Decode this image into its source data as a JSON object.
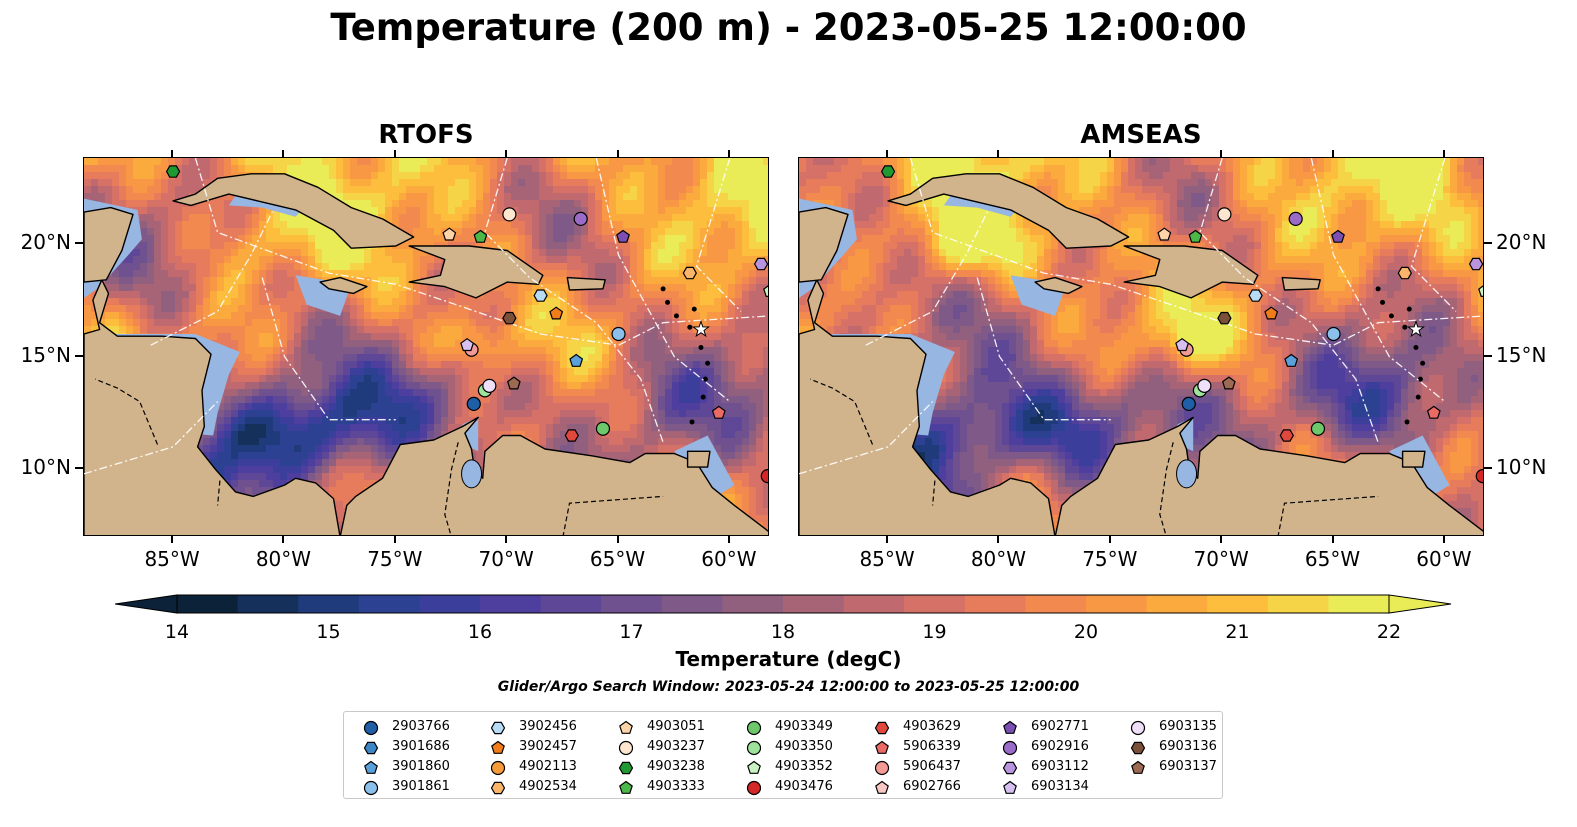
{
  "figure": {
    "title": "Temperature (200 m) - 2023-05-25 12:00:00"
  },
  "panels": [
    {
      "id": "rtofs",
      "title": "RTOFS"
    },
    {
      "id": "amseas",
      "title": "AMSEAS"
    }
  ],
  "axes": {
    "lon_ticks": [
      "85°W",
      "80°W",
      "75°W",
      "70°W",
      "65°W",
      "60°W"
    ],
    "lat_ticks": [
      "20°N",
      "15°N",
      "10°N"
    ]
  },
  "colors": {
    "land": "#d2b48c",
    "shallow_water": "#97b6e1",
    "colormap": [
      "#0c2238",
      "#15305a",
      "#1f3b7c",
      "#2c4192",
      "#3c3e9c",
      "#4e3f9e",
      "#5f4798",
      "#6f518f",
      "#7f5987",
      "#91607f",
      "#a86477",
      "#c06a70",
      "#d67168",
      "#e77c5d",
      "#f2894f",
      "#f89844",
      "#fbaa3d",
      "#fcbe3c",
      "#f6d447",
      "#e9ec57"
    ]
  },
  "colorbar": {
    "label": "Temperature (degC)",
    "min": 14,
    "max": 22,
    "step": 0.4,
    "extend": "both",
    "tick_labels": [
      "14",
      "15",
      "16",
      "17",
      "18",
      "19",
      "20",
      "21",
      "22"
    ]
  },
  "search_window": {
    "text": "Glider/Argo Search Window: 2023-05-24 12:00:00 to 2023-05-25 12:00:00"
  },
  "legend": {
    "columns": 7,
    "entries": [
      {
        "id": "2903766",
        "marker": "circle",
        "color": "#1f5fa8",
        "lon": -71.5,
        "lat": 12.9
      },
      {
        "id": "3901686",
        "marker": "hexagon",
        "color": "#3d86c6",
        "lon": null,
        "lat": null
      },
      {
        "id": "3901860",
        "marker": "pentagon",
        "color": "#5aa0da",
        "lon": -66.9,
        "lat": 14.8
      },
      {
        "id": "3901861",
        "marker": "circle",
        "color": "#8cc0ec",
        "lon": -65.0,
        "lat": 16.0
      },
      {
        "id": "3902456",
        "marker": "hexagon",
        "color": "#b7daf5",
        "lon": -68.5,
        "lat": 17.7
      },
      {
        "id": "3902457",
        "marker": "pentagon",
        "color": "#f07c1a",
        "lon": -67.8,
        "lat": 16.9
      },
      {
        "id": "4902113",
        "marker": "circle",
        "color": "#f79a3a",
        "lon": null,
        "lat": null
      },
      {
        "id": "4902534",
        "marker": "hexagon",
        "color": "#fbb56b",
        "lon": -61.8,
        "lat": 18.7
      },
      {
        "id": "4903051",
        "marker": "pentagon",
        "color": "#fdd3a8",
        "lon": -72.6,
        "lat": 20.4
      },
      {
        "id": "4903237",
        "marker": "circle",
        "color": "#fde6cf",
        "lon": -69.9,
        "lat": 21.3
      },
      {
        "id": "4903238",
        "marker": "hexagon",
        "color": "#1f9a32",
        "lon": -85.0,
        "lat": 23.2
      },
      {
        "id": "4903333",
        "marker": "pentagon",
        "color": "#4cb84a",
        "lon": -71.2,
        "lat": 20.3
      },
      {
        "id": "4903349",
        "marker": "circle",
        "color": "#6cc86a",
        "lon": -65.7,
        "lat": 11.8
      },
      {
        "id": "4903350",
        "marker": "circle",
        "color": "#9de39b",
        "lon": -71.0,
        "lat": 13.5
      },
      {
        "id": "4903352",
        "marker": "pentagon",
        "color": "#c9f2c3",
        "lon": -58.2,
        "lat": 17.9
      },
      {
        "id": "4903476",
        "marker": "circle",
        "color": "#d62728",
        "lon": -58.3,
        "lat": 9.7
      },
      {
        "id": "4903629",
        "marker": "hexagon",
        "color": "#e0483e",
        "lon": -67.1,
        "lat": 11.5
      },
      {
        "id": "5906339",
        "marker": "pentagon",
        "color": "#ea6b66",
        "lon": -60.5,
        "lat": 12.5
      },
      {
        "id": "5906437",
        "marker": "circle",
        "color": "#f29a98",
        "lon": -71.6,
        "lat": 15.3
      },
      {
        "id": "6902766",
        "marker": "pentagon",
        "color": "#f8c7c4",
        "lon": null,
        "lat": null
      },
      {
        "id": "6902771",
        "marker": "pentagon",
        "color": "#7b4fb3",
        "lon": -64.8,
        "lat": 20.3
      },
      {
        "id": "6902916",
        "marker": "circle",
        "color": "#9a6cc8",
        "lon": -66.7,
        "lat": 21.1
      },
      {
        "id": "6903112",
        "marker": "hexagon",
        "color": "#b995e0",
        "lon": -58.6,
        "lat": 19.1
      },
      {
        "id": "6903134",
        "marker": "pentagon",
        "color": "#d7bff0",
        "lon": -71.8,
        "lat": 15.5
      },
      {
        "id": "6903135",
        "marker": "circle",
        "color": "#efdff9",
        "lon": -70.8,
        "lat": 13.7
      },
      {
        "id": "6903136",
        "marker": "hexagon",
        "color": "#7a5038",
        "lon": -69.9,
        "lat": 16.7
      },
      {
        "id": "6903137",
        "marker": "pentagon",
        "color": "#9c6a52",
        "lon": -69.7,
        "lat": 13.8
      }
    ]
  }
}
